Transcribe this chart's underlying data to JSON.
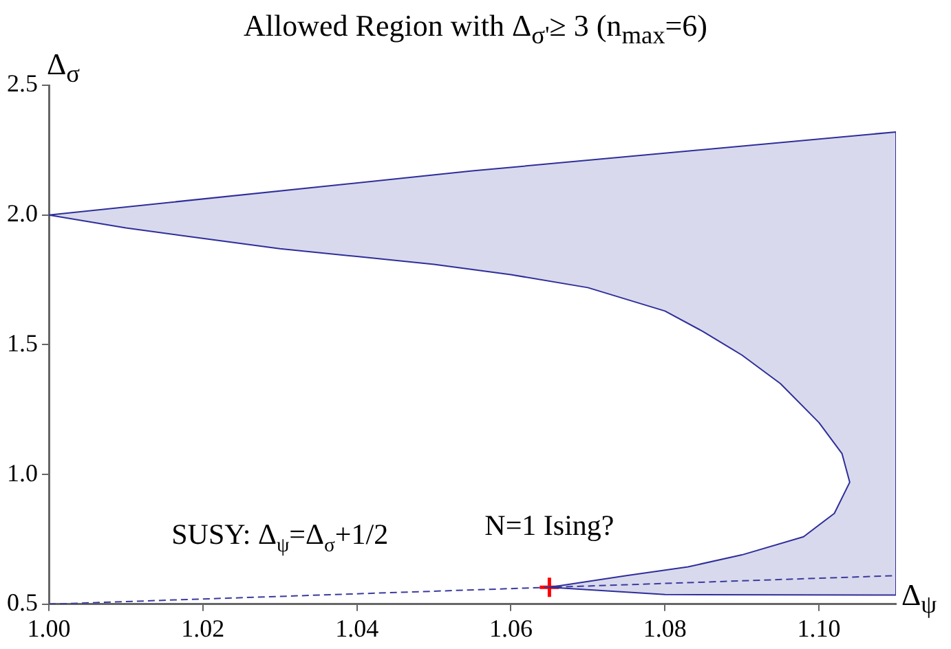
{
  "chart_data": {
    "type": "line",
    "title": "Allowed Region with Δ$_{σ'}$≥ 3 (n$_{max}$=6)",
    "xlabel": "Δ$_{ψ}$",
    "ylabel": "Δ$_{σ}$",
    "xlim": [
      1.0,
      1.11
    ],
    "xticks": [
      {
        "value": 1.0,
        "label": "1.00"
      },
      1.02,
      1.04,
      1.06,
      1.08,
      {
        "value": 1.1,
        "label": "1.10"
      }
    ],
    "ylim": [
      0.5,
      2.5
    ],
    "yticks": [
      0.5,
      {
        "value": 1.0,
        "label": "1.0"
      },
      1.5,
      {
        "value": 2.0,
        "label": "2.0"
      },
      2.5
    ],
    "series": [
      {
        "type": "area",
        "color": "#2e2e9a",
        "x": [
          1.0,
          1.055,
          1.11,
          1.11,
          1.08,
          1.065,
          1.075,
          1.083,
          1.09,
          1.098,
          1.102,
          1.104,
          1.103,
          1.1,
          1.095,
          1.09,
          1.085,
          1.08,
          1.07,
          1.06,
          1.05,
          1.04,
          1.03,
          1.02,
          1.01,
          1.0
        ],
        "values": [
          2.0,
          2.17,
          2.32,
          0.535,
          0.537,
          0.565,
          0.61,
          0.644,
          0.69,
          0.76,
          0.85,
          0.97,
          1.08,
          1.2,
          1.35,
          1.46,
          1.55,
          1.63,
          1.72,
          1.77,
          1.81,
          1.84,
          1.87,
          1.91,
          1.95,
          2.0
        ]
      },
      {
        "color": "#3a3aa0",
        "line_style": "dashed",
        "x": [
          1.0,
          1.11
        ],
        "values": [
          0.5,
          0.61
        ]
      },
      {
        "type": "scatter",
        "color": "#ff0000",
        "marker": "cross",
        "x": [
          1.065
        ],
        "values": [
          0.565
        ]
      }
    ],
    "annotations": [
      {
        "text": "SUSY: Δ$_{ψ}$=Δ$_{σ}$+1/2",
        "x": 1.03,
        "y": 0.53
      },
      {
        "text": "N=1 Ising?",
        "x": 1.065,
        "y": 0.565
      }
    ]
  }
}
